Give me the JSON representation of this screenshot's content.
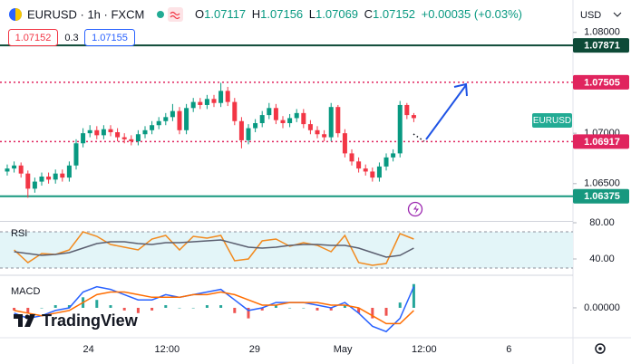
{
  "header": {
    "symbol": "EURUSD · 1h · FXCM",
    "ohlc": [
      {
        "label": "O",
        "value": "1.07117"
      },
      {
        "label": "H",
        "value": "1.07156"
      },
      {
        "label": "L",
        "value": "1.07069"
      },
      {
        "label": "C",
        "value": "1.07152"
      }
    ],
    "change": "+0.00035 (+0.03%)",
    "sell": "1.07152",
    "spread": "0.3",
    "buy": "1.07155",
    "currency": "USD"
  },
  "branding": "TradingView",
  "chart_data": {
    "type": "candlestick",
    "xlim": [
      -1.05,
      82.1
    ],
    "xticks": [
      {
        "value": 11.8,
        "label": "24"
      },
      {
        "value": 23.2,
        "label": "12:00"
      },
      {
        "value": 35.9,
        "label": "29"
      },
      {
        "value": 48.7,
        "label": "May"
      },
      {
        "value": 60.5,
        "label": "12:00"
      },
      {
        "value": 72.8,
        "label": "6"
      }
    ],
    "ylim": [
      1.0613,
      1.0807
    ],
    "yticks": [
      {
        "value": 1.08,
        "label": "1.08000"
      },
      {
        "value": 1.07,
        "label": "1.07000"
      },
      {
        "value": 1.065,
        "label": "1.06500"
      }
    ],
    "up_color": "#089981",
    "down_color": "#f23645",
    "ohlc": [
      [
        1.0662,
        1.0669,
        1.0658,
        1.0665
      ],
      [
        1.0665,
        1.0672,
        1.0661,
        1.0668
      ],
      [
        1.0668,
        1.0671,
        1.0656,
        1.066
      ],
      [
        1.066,
        1.0663,
        1.0636,
        1.0645
      ],
      [
        1.0645,
        1.0656,
        1.0641,
        1.0652
      ],
      [
        1.0652,
        1.0661,
        1.0648,
        1.0657
      ],
      [
        1.0657,
        1.0661,
        1.065,
        1.0654
      ],
      [
        1.0654,
        1.0664,
        1.065,
        1.066
      ],
      [
        1.066,
        1.0664,
        1.0652,
        1.0656
      ],
      [
        1.0656,
        1.0672,
        1.0652,
        1.0668
      ],
      [
        1.0668,
        1.0694,
        1.0664,
        1.069
      ],
      [
        1.069,
        1.0705,
        1.0686,
        1.07
      ],
      [
        1.07,
        1.0708,
        1.0696,
        1.0703
      ],
      [
        1.0703,
        1.0707,
        1.0694,
        1.0698
      ],
      [
        1.0698,
        1.0708,
        1.0694,
        1.0704
      ],
      [
        1.0704,
        1.0708,
        1.0697,
        1.0701
      ],
      [
        1.0701,
        1.0705,
        1.0692,
        1.0696
      ],
      [
        1.0696,
        1.07,
        1.069,
        1.0694
      ],
      [
        1.0694,
        1.0698,
        1.0688,
        1.0692
      ],
      [
        1.0692,
        1.0703,
        1.0688,
        1.0699
      ],
      [
        1.0699,
        1.0707,
        1.0695,
        1.0703
      ],
      [
        1.0703,
        1.0712,
        1.0699,
        1.0708
      ],
      [
        1.0708,
        1.0716,
        1.0704,
        1.0712
      ],
      [
        1.0712,
        1.072,
        1.0708,
        1.0716
      ],
      [
        1.0716,
        1.0729,
        1.0712,
        1.0722
      ],
      [
        1.0722,
        1.0726,
        1.0699,
        1.0703
      ],
      [
        1.0703,
        1.0729,
        1.0699,
        1.0725
      ],
      [
        1.0725,
        1.0735,
        1.0721,
        1.0731
      ],
      [
        1.0731,
        1.0735,
        1.0724,
        1.0728
      ],
      [
        1.0728,
        1.0738,
        1.0724,
        1.0734
      ],
      [
        1.0734,
        1.0738,
        1.0726,
        1.073
      ],
      [
        1.073,
        1.075,
        1.0726,
        1.0742
      ],
      [
        1.0742,
        1.0746,
        1.0727,
        1.0731
      ],
      [
        1.0731,
        1.0735,
        1.0708,
        1.0712
      ],
      [
        1.0712,
        1.0716,
        1.0685,
        1.0693
      ],
      [
        1.0693,
        1.0709,
        1.0689,
        1.0705
      ],
      [
        1.0705,
        1.0714,
        1.0701,
        1.071
      ],
      [
        1.071,
        1.0722,
        1.0706,
        1.0718
      ],
      [
        1.0718,
        1.073,
        1.0714,
        1.0725
      ],
      [
        1.0725,
        1.0729,
        1.0709,
        1.0713
      ],
      [
        1.0713,
        1.0717,
        1.0705,
        1.071
      ],
      [
        1.071,
        1.0719,
        1.0706,
        1.0715
      ],
      [
        1.0715,
        1.0724,
        1.0711,
        1.072
      ],
      [
        1.072,
        1.0724,
        1.0705,
        1.0709
      ],
      [
        1.0709,
        1.0713,
        1.0699,
        1.0703
      ],
      [
        1.0703,
        1.0707,
        1.0695,
        1.0699
      ],
      [
        1.0699,
        1.0703,
        1.0692,
        1.0696
      ],
      [
        1.0696,
        1.073,
        1.0692,
        1.0726
      ],
      [
        1.0726,
        1.0728,
        1.0696,
        1.07
      ],
      [
        1.07,
        1.0704,
        1.0676,
        1.068
      ],
      [
        1.068,
        1.0684,
        1.0668,
        1.0672
      ],
      [
        1.0672,
        1.0676,
        1.0661,
        1.0665
      ],
      [
        1.0665,
        1.0669,
        1.0658,
        1.0662
      ],
      [
        1.0662,
        1.0666,
        1.0652,
        1.0656
      ],
      [
        1.0656,
        1.0671,
        1.0652,
        1.0667
      ],
      [
        1.0667,
        1.068,
        1.0663,
        1.0676
      ],
      [
        1.0676,
        1.0684,
        1.0672,
        1.068
      ],
      [
        1.068,
        1.0732,
        1.0676,
        1.0728
      ],
      [
        1.0728,
        1.073,
        1.0714,
        1.0718
      ],
      [
        1.0718,
        1.072,
        1.0711,
        1.0715
      ]
    ],
    "hlines": [
      {
        "value": 1.07871,
        "label": "1.07871",
        "color": "#0d4a37",
        "style": "solid"
      },
      {
        "value": 1.07505,
        "label": "1.07505",
        "color": "#e0245e",
        "style": "dotted"
      },
      {
        "value": 1.06917,
        "label": "1.06917",
        "color": "#e0245e",
        "style": "dotted"
      },
      {
        "value": 1.06375,
        "label": "1.06375",
        "color": "#17987f",
        "style": "solid"
      }
    ],
    "symbol_tag": "EURUSD",
    "tag_color": "#22ab94",
    "rsi": {
      "label": "RSI",
      "ylim": [
        23,
        82
      ],
      "yticks": [
        {
          "value": 80,
          "label": "80.00"
        },
        {
          "value": 40,
          "label": "40.00"
        }
      ],
      "band": [
        30,
        70
      ],
      "x": [
        1,
        3,
        5,
        7,
        9,
        11,
        13,
        15,
        17,
        19,
        21,
        23,
        25,
        27,
        29,
        31,
        33,
        35,
        37,
        39,
        41,
        43,
        45,
        47,
        49,
        51,
        53,
        55,
        57,
        59
      ],
      "series": [
        {
          "color": "#f28a1e",
          "values": [
            50,
            36,
            46,
            45,
            50,
            70,
            65,
            56,
            53,
            50,
            62,
            66,
            50,
            65,
            63,
            66,
            38,
            40,
            60,
            62,
            54,
            58,
            55,
            48,
            66,
            36,
            33,
            35,
            68,
            62
          ]
        },
        {
          "color": "#5b5f70",
          "values": [
            48,
            46,
            44,
            45,
            47,
            52,
            57,
            59,
            59,
            57,
            56,
            58,
            58,
            59,
            60,
            61,
            57,
            53,
            52,
            53,
            55,
            56,
            56,
            55,
            55,
            52,
            47,
            42,
            44,
            52
          ]
        }
      ]
    },
    "macd": {
      "label": "MACD",
      "ylim": [
        -0.0011,
        0.0012
      ],
      "yticks": [
        {
          "value": 0,
          "label": "0.00000"
        }
      ],
      "x": [
        1,
        3,
        5,
        7,
        9,
        11,
        13,
        15,
        17,
        19,
        21,
        23,
        25,
        27,
        29,
        31,
        33,
        35,
        37,
        39,
        41,
        43,
        45,
        47,
        49,
        51,
        53,
        55,
        57,
        59
      ],
      "series": [
        {
          "color": "#2962ff",
          "values": [
            -0.0002,
            -0.0004,
            -0.0003,
            -0.0001,
            0,
            0.0006,
            0.0008,
            0.0007,
            0.0005,
            0.0003,
            0.0003,
            0.0005,
            0.0004,
            0.0005,
            0.0006,
            0.0007,
            0.0003,
            -0.0001,
            0,
            0.0002,
            0.0002,
            0.0002,
            0.0001,
            0,
            0.0002,
            -0.0002,
            -0.0007,
            -0.0009,
            -0.0004,
            0.0008
          ]
        },
        {
          "color": "#ff6d00",
          "values": [
            -0.0001,
            -0.0002,
            -0.0003,
            -0.0002,
            -0.0001,
            0.0002,
            0.0005,
            0.0006,
            0.0006,
            0.0005,
            0.0004,
            0.0004,
            0.0004,
            0.0005,
            0.0005,
            0.0006,
            0.0005,
            0.0003,
            0.0001,
            0.0001,
            0.0002,
            0.0002,
            0.0002,
            0.0001,
            0.0001,
            0,
            -0.0003,
            -0.0006,
            -0.0006,
            -0.0001
          ]
        }
      ],
      "hist": [
        -0.0001,
        -0.0002,
        0,
        0.0001,
        0.0001,
        0.0004,
        0.0003,
        0.0001,
        -0.0001,
        -0.0002,
        -0.0001,
        0.0001,
        0,
        0,
        0.0001,
        0.0001,
        -0.0002,
        -0.0004,
        -0.0001,
        0.0001,
        0,
        0,
        -0.0001,
        -0.0001,
        0.0001,
        -0.0002,
        -0.0004,
        -0.0003,
        0.0002,
        0.0009
      ],
      "hist_up": "#26a69a",
      "hist_down": "#ef5350"
    }
  }
}
